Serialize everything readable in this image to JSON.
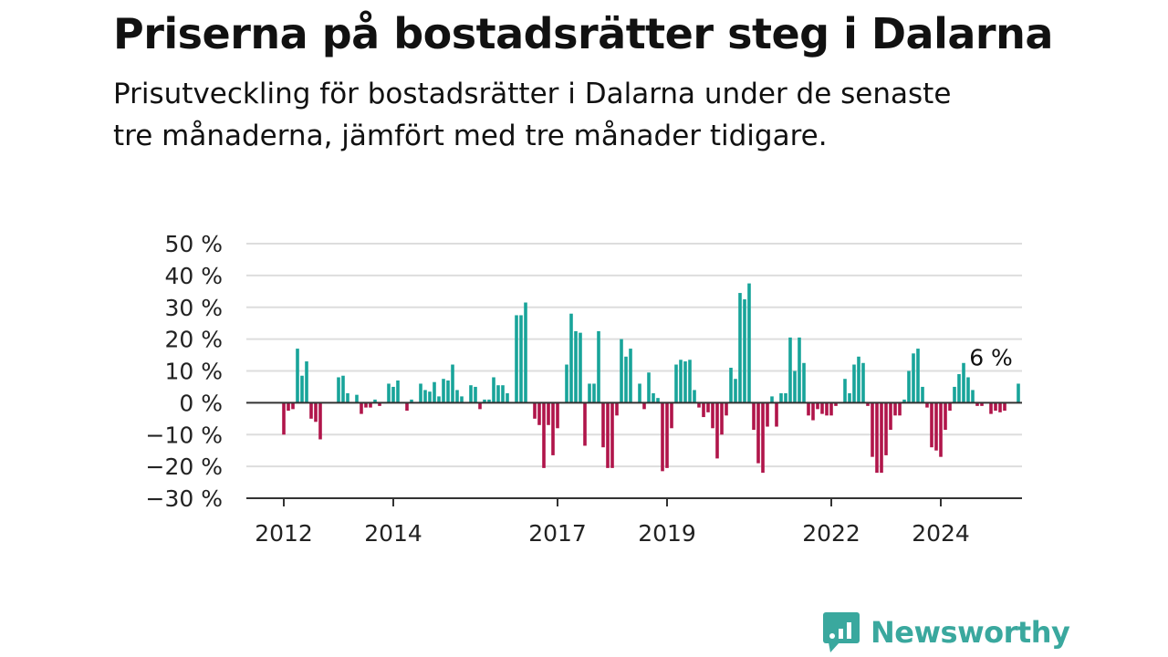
{
  "colors": {
    "positive": "#18a49a",
    "negative": "#b0154a",
    "grid": "#dddddd",
    "axis": "#333333",
    "brand": "#3aa89e"
  },
  "brand": {
    "name": "Newsworthy",
    "icon": "newsworthy-logo-icon"
  },
  "chart_data": {
    "type": "bar",
    "title": "Priserna på bostadsrätter steg i Dalarna",
    "subtitle": "Prisutveckling för bostadsrätter i Dalarna under de senaste tre månaderna, jämfört med tre månader tidigare.",
    "xlabel": "",
    "ylabel": "",
    "ylim": [
      -30,
      50
    ],
    "yticks": [
      50,
      40,
      30,
      20,
      10,
      0,
      -10,
      -20,
      -30
    ],
    "ytick_labels": [
      "50 %",
      "40 %",
      "30 %",
      "20 %",
      "10 %",
      "0 %",
      "−10 %",
      "−20 %",
      "−30 %"
    ],
    "x_start": "2012-01",
    "x_end": "2024-12",
    "xticks": [
      {
        "label": "2012",
        "month": "2012-01"
      },
      {
        "label": "2014",
        "month": "2014-01"
      },
      {
        "label": "2017",
        "month": "2017-01"
      },
      {
        "label": "2019",
        "month": "2019-01"
      },
      {
        "label": "2022",
        "month": "2022-01"
      },
      {
        "label": "2024",
        "month": "2024-01"
      }
    ],
    "grid": true,
    "legend": "none",
    "annotation": {
      "text": "6 %",
      "month": "2024-12",
      "value": 6
    },
    "series": [
      {
        "values": [
          -10,
          -2.5,
          -2,
          17,
          8.5,
          13,
          -5,
          -6,
          -11.5,
          0,
          0,
          0,
          8,
          8.5,
          3,
          0,
          2.5,
          -3.5,
          -1.5,
          -1.5,
          1,
          -1,
          0,
          6,
          5,
          7,
          0,
          -2.5,
          1,
          0,
          6,
          4,
          3.5,
          6.5,
          2,
          7.5,
          7,
          12,
          4,
          2,
          0,
          5.5,
          5,
          -2,
          1,
          1,
          8,
          5.5,
          5.5,
          3,
          0,
          27.5,
          27.5,
          31.5,
          0,
          -5,
          -7,
          -20.5,
          -7,
          -16.5,
          -8,
          0,
          12,
          28,
          22.5,
          22,
          -13.5,
          6,
          6,
          22.5,
          -14,
          -20.5,
          -20.5,
          -4,
          20,
          14.5,
          17,
          0,
          6,
          -2,
          9.5,
          3,
          1.5,
          -21.5,
          -20.5,
          -8,
          12,
          13.5,
          13,
          13.5,
          4,
          -1.5,
          -4.5,
          -3,
          -8,
          -17.5,
          -10,
          -4,
          11,
          7.5,
          34.5,
          32.5,
          37.5,
          -8.5,
          -19,
          -22,
          -7.5,
          2,
          -7.5,
          3,
          3,
          20.5,
          10,
          20.5,
          12.5,
          -4,
          -5.5,
          -2,
          -3.5,
          -4,
          -4,
          -1,
          0,
          7.5,
          3,
          12,
          14.5,
          12.5,
          -1,
          -17,
          -22,
          -22,
          -16.5,
          -8.5,
          -4,
          -4,
          1,
          10,
          15.5,
          17,
          5,
          -1.5,
          -14,
          -15,
          -17,
          -8.5,
          -2.5,
          5,
          9,
          12.5,
          8,
          4,
          -1,
          -1,
          0,
          -3.5,
          -2.5,
          -3,
          -2.5,
          0,
          0,
          6
        ]
      }
    ]
  }
}
